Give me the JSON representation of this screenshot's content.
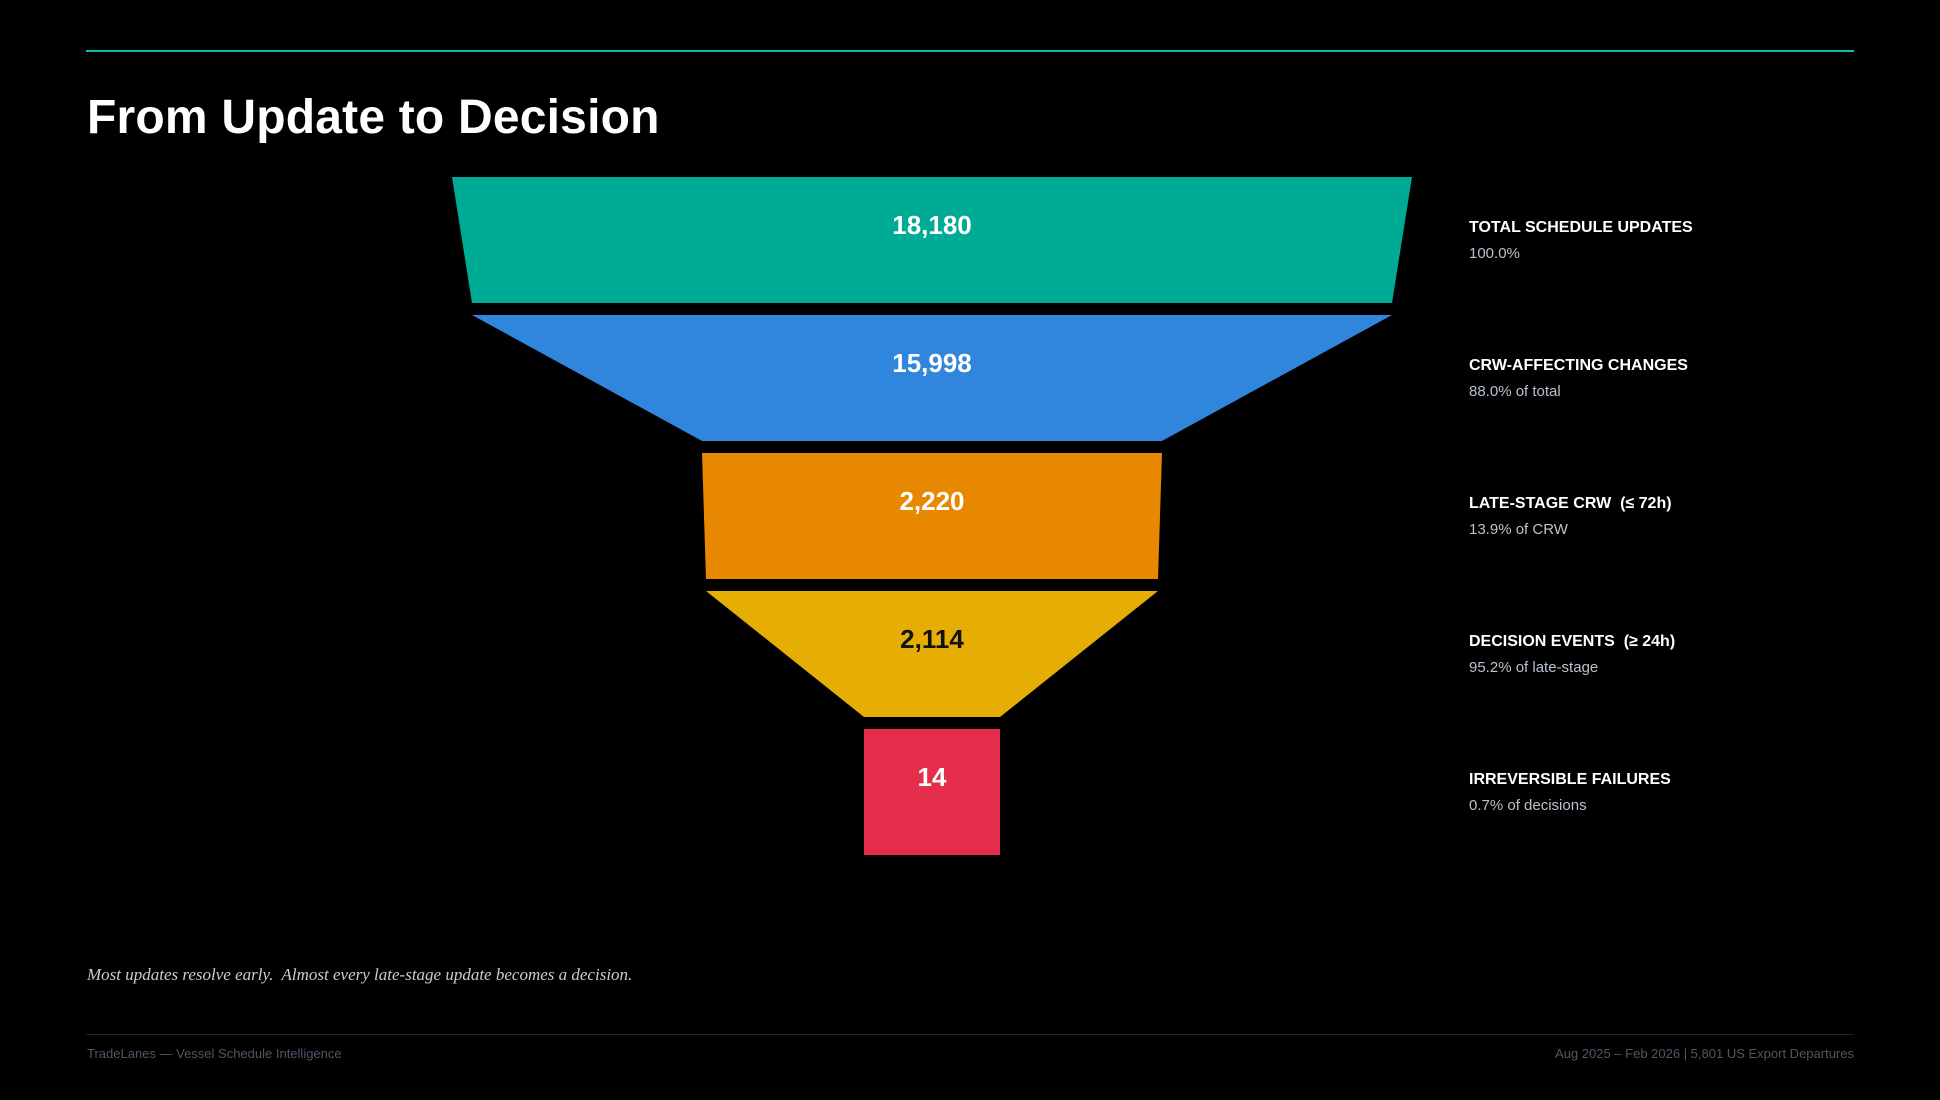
{
  "page": {
    "title": "From Update to Decision",
    "caption": "Most updates resolve early.  Almost every late-stage update becomes a decision.",
    "footer_left": "TradeLanes — Vessel Schedule Intelligence",
    "footer_right": "Aug 2025 – Feb 2026  |  5,801 US Export Departures",
    "accent_color": "#14b8a6"
  },
  "chart_data": {
    "type": "funnel",
    "title": "From Update to Decision",
    "stages": [
      {
        "name": "TOTAL SCHEDULE UPDATES",
        "value": 18180,
        "value_label": "18,180",
        "subtitle": "100.0%",
        "color": "#00ab96",
        "text_color": "#ffffff"
      },
      {
        "name": "CRW-AFFECTING CHANGES",
        "value": 15998,
        "value_label": "15,998",
        "subtitle": "88.0% of total",
        "color": "#2f86dc",
        "text_color": "#ffffff"
      },
      {
        "name": "LATE-STAGE CRW  (≤ 72h)",
        "value": 2220,
        "value_label": "2,220",
        "subtitle": "13.9% of CRW",
        "color": "#e88800",
        "text_color": "#ffffff"
      },
      {
        "name": "DECISION EVENTS  (≥ 24h)",
        "value": 2114,
        "value_label": "2,114",
        "subtitle": "95.2% of late-stage",
        "color": "#e6ae05",
        "text_color": "#111111"
      },
      {
        "name": "IRREVERSIBLE FAILURES",
        "value": 14,
        "value_label": "14",
        "subtitle": "0.7% of decisions",
        "color": "#e52d4c",
        "text_color": "#ffffff"
      }
    ]
  }
}
